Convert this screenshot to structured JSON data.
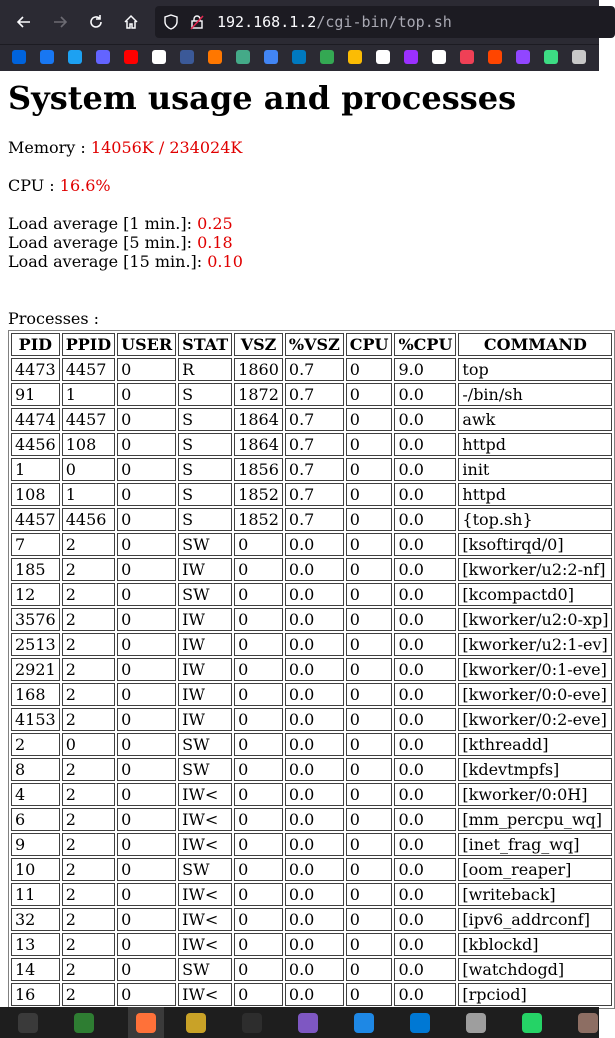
{
  "browser": {
    "url_host": "192.168.1.2",
    "url_path": "/cgi-bin/top.sh",
    "bookmark_icons": [
      "flickr-icon",
      "facebook-icon",
      "twitter-icon",
      "mastodon-icon",
      "youtube-icon",
      "app-icon",
      "rss-icon",
      "soundcloud-icon",
      "gamepad-icon",
      "calendar-icon",
      "trello-icon",
      "drive-icon",
      "photos-icon",
      "dict-icon",
      "podcast-icon",
      "del-icon",
      "pocket-icon",
      "reddit-icon",
      "twitch-icon",
      "android-icon",
      "folder-icon"
    ]
  },
  "page": {
    "title": "System usage and processes",
    "memory_label": "Memory : ",
    "memory_value": "14056K / 234024K",
    "cpu_label": "CPU : ",
    "cpu_value": "16.6%",
    "load1_label": "Load average [1 min.]: ",
    "load1_value": "0.25",
    "load5_label": "Load average [5 min.]: ",
    "load5_value": "0.18",
    "load15_label": "Load average [15 min.]: ",
    "load15_value": "0.10",
    "processes_label": "Processes :"
  },
  "table": {
    "headers": [
      "PID",
      "PPID",
      "USER",
      "STAT",
      "VSZ",
      "%VSZ",
      "CPU",
      "%CPU",
      "COMMAND"
    ],
    "rows": [
      [
        "4473",
        "4457",
        "0",
        "R",
        "1860",
        "0.7",
        "0",
        "9.0",
        "top"
      ],
      [
        "91",
        "1",
        "0",
        "S",
        "1872",
        "0.7",
        "0",
        "0.0",
        "-/bin/sh"
      ],
      [
        "4474",
        "4457",
        "0",
        "S",
        "1864",
        "0.7",
        "0",
        "0.0",
        "awk"
      ],
      [
        "4456",
        "108",
        "0",
        "S",
        "1864",
        "0.7",
        "0",
        "0.0",
        "httpd"
      ],
      [
        "1",
        "0",
        "0",
        "S",
        "1856",
        "0.7",
        "0",
        "0.0",
        "init"
      ],
      [
        "108",
        "1",
        "0",
        "S",
        "1852",
        "0.7",
        "0",
        "0.0",
        "httpd"
      ],
      [
        "4457",
        "4456",
        "0",
        "S",
        "1852",
        "0.7",
        "0",
        "0.0",
        "{top.sh}"
      ],
      [
        "7",
        "2",
        "0",
        "SW",
        "0",
        "0.0",
        "0",
        "0.0",
        "[ksoftirqd/0]"
      ],
      [
        "185",
        "2",
        "0",
        "IW",
        "0",
        "0.0",
        "0",
        "0.0",
        "[kworker/u2:2-nf]"
      ],
      [
        "12",
        "2",
        "0",
        "SW",
        "0",
        "0.0",
        "0",
        "0.0",
        "[kcompactd0]"
      ],
      [
        "3576",
        "2",
        "0",
        "IW",
        "0",
        "0.0",
        "0",
        "0.0",
        "[kworker/u2:0-xp]"
      ],
      [
        "2513",
        "2",
        "0",
        "IW",
        "0",
        "0.0",
        "0",
        "0.0",
        "[kworker/u2:1-ev]"
      ],
      [
        "2921",
        "2",
        "0",
        "IW",
        "0",
        "0.0",
        "0",
        "0.0",
        "[kworker/0:1-eve]"
      ],
      [
        "168",
        "2",
        "0",
        "IW",
        "0",
        "0.0",
        "0",
        "0.0",
        "[kworker/0:0-eve]"
      ],
      [
        "4153",
        "2",
        "0",
        "IW",
        "0",
        "0.0",
        "0",
        "0.0",
        "[kworker/0:2-eve]"
      ],
      [
        "2",
        "0",
        "0",
        "SW",
        "0",
        "0.0",
        "0",
        "0.0",
        "[kthreadd]"
      ],
      [
        "8",
        "2",
        "0",
        "SW",
        "0",
        "0.0",
        "0",
        "0.0",
        "[kdevtmpfs]"
      ],
      [
        "4",
        "2",
        "0",
        "IW<",
        "0",
        "0.0",
        "0",
        "0.0",
        "[kworker/0:0H]"
      ],
      [
        "6",
        "2",
        "0",
        "IW<",
        "0",
        "0.0",
        "0",
        "0.0",
        "[mm_percpu_wq]"
      ],
      [
        "9",
        "2",
        "0",
        "IW<",
        "0",
        "0.0",
        "0",
        "0.0",
        "[inet_frag_wq]"
      ],
      [
        "10",
        "2",
        "0",
        "SW",
        "0",
        "0.0",
        "0",
        "0.0",
        "[oom_reaper]"
      ],
      [
        "11",
        "2",
        "0",
        "IW<",
        "0",
        "0.0",
        "0",
        "0.0",
        "[writeback]"
      ],
      [
        "32",
        "2",
        "0",
        "IW<",
        "0",
        "0.0",
        "0",
        "0.0",
        "[ipv6_addrconf]"
      ],
      [
        "13",
        "2",
        "0",
        "IW<",
        "0",
        "0.0",
        "0",
        "0.0",
        "[kblockd]"
      ],
      [
        "14",
        "2",
        "0",
        "SW",
        "0",
        "0.0",
        "0",
        "0.0",
        "[watchdogd]"
      ],
      [
        "16",
        "2",
        "0",
        "IW<",
        "0",
        "0.0",
        "0",
        "0.0",
        "[rpciod]"
      ]
    ]
  },
  "taskbar": {
    "apps": [
      "terminal-icon",
      "tex-icon",
      "firefox-icon",
      "files-icon",
      "gitkraken-icon",
      "store-icon",
      "monitor-icon",
      "vscode-icon",
      "settings-icon",
      "whatsapp-icon",
      "gimp-icon"
    ]
  },
  "colors": {
    "accent_red": "#e00000",
    "toolbar": "#2b2a33"
  }
}
